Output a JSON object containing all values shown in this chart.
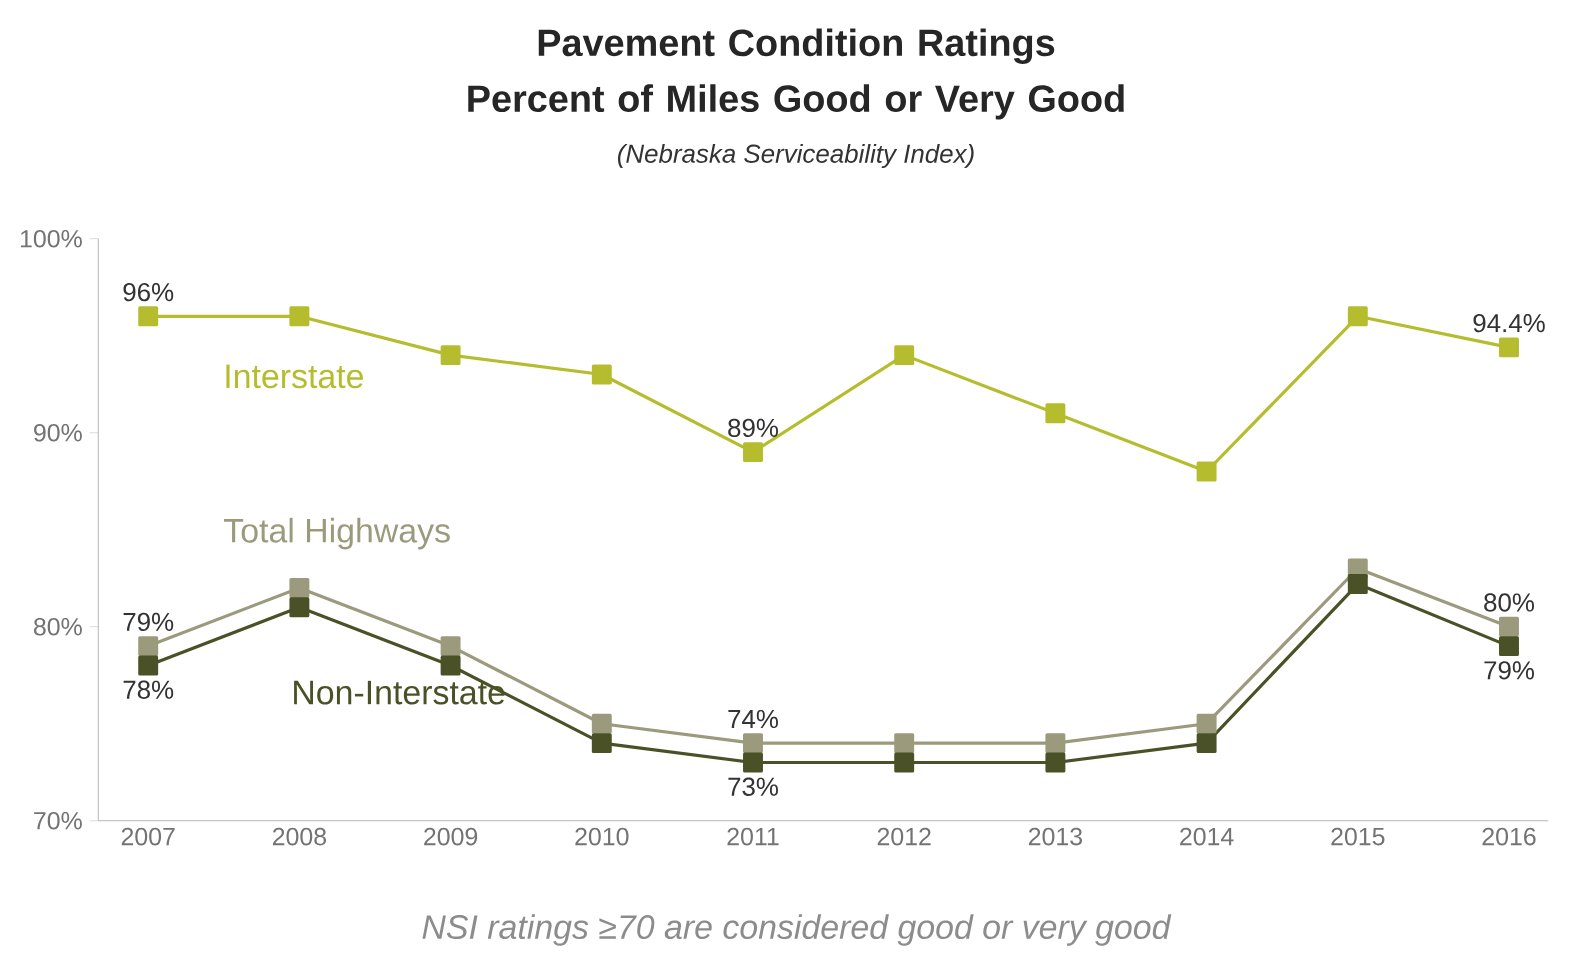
{
  "chart_data": {
    "type": "line",
    "title": "Pavement Condition Ratings\nPercent of Miles Good or Very Good",
    "subtitle": "(Nebraska Serviceability Index)",
    "categories": [
      "2007",
      "2008",
      "2009",
      "2010",
      "2011",
      "2012",
      "2013",
      "2014",
      "2015",
      "2016"
    ],
    "series": [
      {
        "name": "Interstate",
        "color": "#b5bd2e",
        "values": [
          96,
          96,
          94,
          93,
          89,
          94,
          91,
          88,
          96,
          94.4
        ],
        "value_labels": [
          "96%",
          null,
          null,
          null,
          "89%",
          null,
          null,
          null,
          null,
          "94.4%"
        ]
      },
      {
        "name": "Total Highways",
        "color": "#9b9a7c",
        "values": [
          79,
          82,
          79,
          75,
          74,
          74,
          74,
          75,
          83,
          80
        ],
        "value_labels": [
          "79%",
          null,
          null,
          null,
          "74%",
          null,
          null,
          null,
          null,
          "80%"
        ]
      },
      {
        "name": "Non-Interstate",
        "color": "#4b5126",
        "values": [
          78,
          81,
          78,
          74,
          73,
          73,
          73,
          74,
          82.2,
          79
        ],
        "value_labels": [
          "78%",
          null,
          null,
          null,
          "73%",
          null,
          null,
          null,
          null,
          "79%"
        ]
      }
    ],
    "ylim": [
      70,
      100
    ],
    "yticks": [
      {
        "value": 70,
        "label": "70%"
      },
      {
        "value": 80,
        "label": "80%"
      },
      {
        "value": 90,
        "label": "90%"
      },
      {
        "value": 100,
        "label": "100%"
      }
    ],
    "marker": "square",
    "line_style": "solid",
    "grid": false,
    "annotations": [
      "NSI ratings ≥70 are considered good or very good"
    ]
  }
}
